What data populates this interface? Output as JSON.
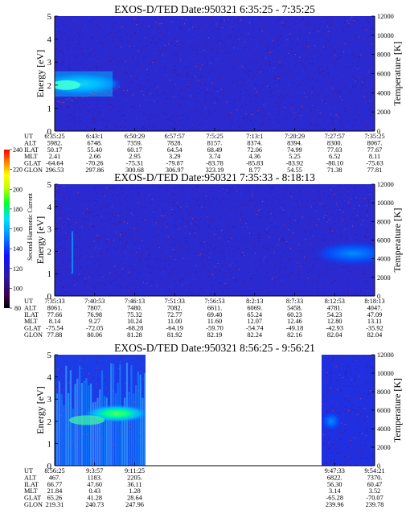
{
  "colorbar": {
    "label": "Second Harmonic Current",
    "ticks": [
      80,
      100,
      120,
      140,
      160,
      180,
      200,
      220,
      240
    ]
  },
  "chart_data": [
    {
      "type": "heatmap",
      "title": "EXOS-D/TED",
      "date_text": "Date:950321",
      "time_range": "6:35:25 - 7:35:25",
      "ylabel": "Energy [eV]",
      "ylabel_right": "Temperature [K]",
      "ylim": [
        0,
        5
      ],
      "ylim_right": [
        0,
        12000
      ],
      "yticks": [
        0,
        1,
        2,
        3,
        4,
        5
      ],
      "yticks_right": [
        0,
        2000,
        4000,
        6000,
        8000,
        10000,
        12000
      ],
      "table": {
        "row_labels": [
          "UT",
          "ALT",
          "ILAT",
          "MLT",
          "GLAT",
          "GLON"
        ],
        "columns": [
          [
            "6:35:25",
            "5982.",
            "50.17",
            "2.41",
            "-64.64",
            "296.53"
          ],
          [
            "6:43:1",
            "6748.",
            "55.40",
            "2.66",
            "-70.26",
            "297.86"
          ],
          [
            "6:50:29",
            "7359.",
            "60.17",
            "2.95",
            "-75.31",
            "300.68"
          ],
          [
            "6:57:57",
            "7828.",
            "64.54",
            "3.29",
            "-79.87",
            "306.97"
          ],
          [
            "7:5:25",
            "8157.",
            "68.49",
            "3.74",
            "-83.78",
            "323.19"
          ],
          [
            "7:13:1",
            "8374.",
            "72.06",
            "4.36",
            "-85.83",
            "8.77"
          ],
          [
            "7:20:29",
            "8394.",
            "74.99",
            "5.25",
            "-83.92",
            "54.55"
          ],
          [
            "7:27:57",
            "8300.",
            "77.03",
            "6.52",
            "-80.10",
            "71.38"
          ],
          [
            "7:35:25",
            "8067.",
            "77.67",
            "8.11",
            "-75.63",
            "77.81"
          ]
        ]
      }
    },
    {
      "type": "heatmap",
      "title": "EXOS-D/TED",
      "date_text": "Date:950321",
      "time_range": "7:35:33 - 8:18:13",
      "ylabel": "Energy [eV]",
      "ylabel_right": "Temperature [K]",
      "ylim": [
        0,
        5
      ],
      "ylim_right": [
        0,
        12000
      ],
      "yticks": [
        0,
        1,
        2,
        3,
        4,
        5
      ],
      "yticks_right": [
        0,
        2000,
        4000,
        6000,
        8000,
        10000,
        12000
      ],
      "table": {
        "row_labels": [
          "UT",
          "ALT",
          "ILAT",
          "MLT",
          "GLAT",
          "GLON"
        ],
        "columns": [
          [
            "7:35:33",
            "8061.",
            "77.66",
            "8.14",
            "-75.54",
            "77.88"
          ],
          [
            "7:40:53",
            "7807.",
            "76.98",
            "9.27",
            "-72.05",
            "80.06"
          ],
          [
            "7:46:13",
            "7480.",
            "75.32",
            "10.24",
            "-68.28",
            "81.28"
          ],
          [
            "7:51:33",
            "7082.",
            "72.77",
            "11.00",
            "-64.19",
            "81.92"
          ],
          [
            "7:56:53",
            "6611.",
            "69.40",
            "11.60",
            "-59.70",
            "82.19"
          ],
          [
            "8:2:13",
            "6069.",
            "65.24",
            "12.07",
            "-54.74",
            "82.24"
          ],
          [
            "8:7:33",
            "5458.",
            "60.23",
            "12.46",
            "-49.18",
            "82.16"
          ],
          [
            "8:12:53",
            "4781.",
            "54.23",
            "12.80",
            "-42.93",
            "82.04"
          ],
          [
            "8:18:13",
            "4047.",
            "47.09",
            "13.11",
            "-35.92",
            "82.04"
          ]
        ]
      }
    },
    {
      "type": "heatmap",
      "title": "EXOS-D/TED",
      "date_text": "Date:950321",
      "time_range": "8:56:25 - 9:56:21",
      "ylabel": "Energy [eV]",
      "ylabel_right": "Temperature [K]",
      "ylim": [
        0,
        5
      ],
      "ylim_right": [
        0,
        12000
      ],
      "yticks": [
        0,
        1,
        2,
        3,
        4,
        5
      ],
      "yticks_right": [
        0,
        2000,
        4000,
        6000,
        8000,
        10000,
        12000
      ],
      "table": {
        "row_labels": [
          "UT",
          "ALT",
          "ILAT",
          "MLT",
          "GLAT",
          "GLON"
        ],
        "columns": [
          [
            "8:56:25",
            "467.",
            "66.77",
            "21.84",
            "65.26",
            "219.31"
          ],
          [
            "9:3:57",
            "1183.",
            "47.60",
            "0.43",
            "41.28",
            "240.73"
          ],
          [
            "9:11:25",
            "2205.",
            "36.11",
            "1.28",
            "28.64",
            "247.96"
          ],
          [
            "",
            "",
            "",
            "",
            "",
            ""
          ],
          [
            "",
            "",
            "",
            "",
            "",
            ""
          ],
          [
            "",
            "",
            "",
            "",
            "",
            ""
          ],
          [
            "",
            "",
            "",
            "",
            "",
            ""
          ],
          [
            "9:47:33",
            "6822.",
            "56.30",
            "3.14",
            "-65.28",
            "239.96"
          ],
          [
            "9:54:21",
            "7370.",
            "60.47",
            "3.52",
            "-70.07",
            "239.78"
          ]
        ]
      }
    }
  ]
}
